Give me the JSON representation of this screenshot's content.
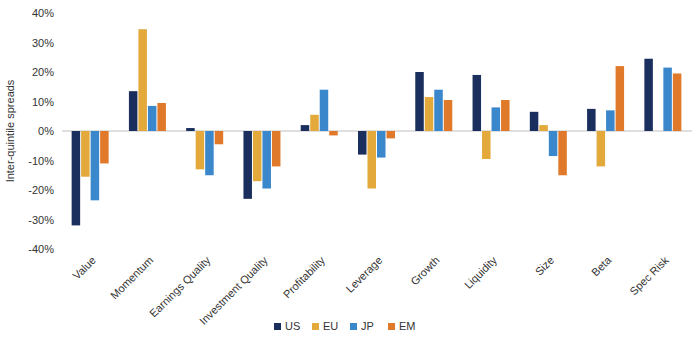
{
  "chart_data": {
    "type": "bar",
    "y_label": "Inter-quintile spreads",
    "categories": [
      "Value",
      "Momentum",
      "Earnings Quality",
      "Investment Quality",
      "Profitability",
      "Leverage",
      "Growth",
      "Liquidity",
      "Size",
      "Beta",
      "Spec Risk"
    ],
    "series": [
      {
        "name": "US",
        "color": "#1b2f5e",
        "values": [
          -32,
          13.5,
          1,
          -23,
          2,
          -8,
          20,
          19,
          6.5,
          7.5,
          24.5
        ]
      },
      {
        "name": "EU",
        "color": "#e3a93b",
        "values": [
          -15.5,
          34.5,
          -13,
          -17,
          5.5,
          -19.5,
          11.5,
          -9.5,
          2,
          -12,
          null
        ]
      },
      {
        "name": "JP",
        "color": "#3a87cc",
        "values": [
          -23.5,
          8.5,
          -15,
          -19.5,
          14,
          -9,
          14,
          8,
          -8.5,
          7,
          21.5
        ]
      },
      {
        "name": "EM",
        "color": "#e07a2a",
        "values": [
          -11,
          9.5,
          -4.5,
          -12,
          -1.5,
          -2.5,
          10.5,
          10.5,
          -15,
          22,
          19.5
        ]
      }
    ],
    "ylim": [
      -40,
      40
    ],
    "yticks": [
      {
        "value": -40,
        "label": "-40%"
      },
      {
        "value": -30,
        "label": "-30%"
      },
      {
        "value": -20,
        "label": "-20%"
      },
      {
        "value": -10,
        "label": "-10%"
      },
      {
        "value": 0,
        "label": "0%"
      },
      {
        "value": 10,
        "label": "10%"
      },
      {
        "value": 20,
        "label": "20%"
      },
      {
        "value": 30,
        "label": "30%"
      },
      {
        "value": 40,
        "label": "40%"
      }
    ],
    "grid": false,
    "legend": "bottom"
  }
}
